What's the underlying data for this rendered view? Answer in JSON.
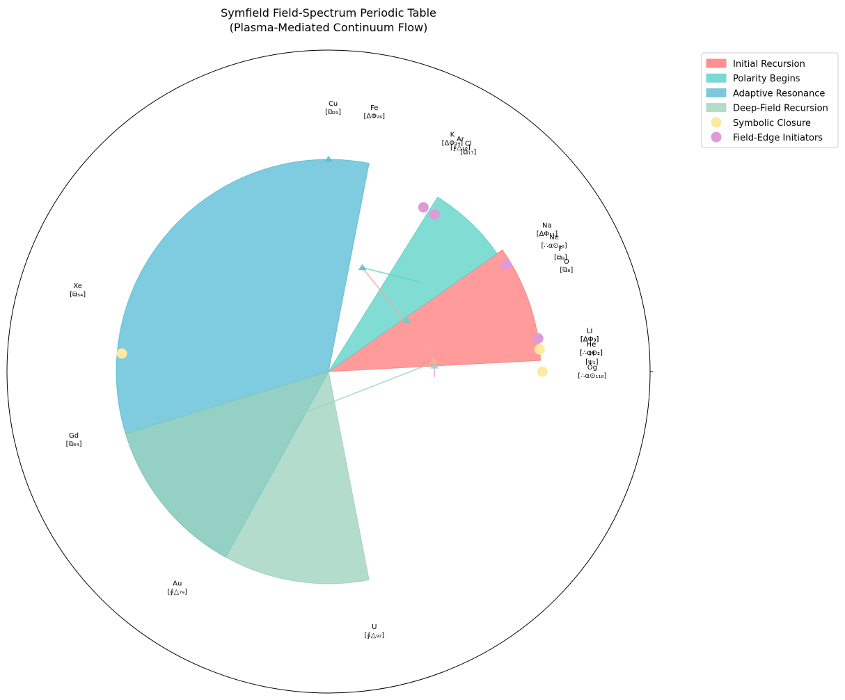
{
  "chart_data": {
    "type": "polar-bar",
    "title": "Symfield Field-Spectrum Periodic Table",
    "subtitle": "(Plasma-Mediated Continuum Flow)",
    "series": [
      {
        "name": "Initial Recursion",
        "color": "#ff7f7f",
        "theta_start": 3,
        "theta_end": 35,
        "r": 0.66
      },
      {
        "name": "Polarity Begins",
        "color": "#5ed3c8",
        "theta_start": 35,
        "theta_end": 58,
        "r": 0.64
      },
      {
        "name": "Adaptive Resonance",
        "color": "#5bbcd6",
        "theta_start": 79,
        "theta_end": 197,
        "r": 0.66
      },
      {
        "name": "Deep-Field Recursion",
        "color": "#9ed2be",
        "theta_start": 197,
        "theta_end": 281,
        "r": 0.66
      }
    ],
    "bar_overlaps": [
      {
        "color": "#7bc7bf",
        "theta_start": 197,
        "theta_end": 241,
        "r": 0.66
      }
    ],
    "legend": {
      "position": "upper-right",
      "entries": [
        {
          "label": "Initial Recursion",
          "color": "#ff8f8f",
          "kind": "patch"
        },
        {
          "label": "Polarity Begins",
          "color": "#7ad9d1",
          "kind": "patch"
        },
        {
          "label": "Adaptive Resonance",
          "color": "#7cc9dc",
          "kind": "patch"
        },
        {
          "label": "Deep-Field Recursion",
          "color": "#b5dbca",
          "kind": "patch"
        },
        {
          "label": "Symbolic Closure",
          "color": "#ffe8a0",
          "kind": "marker"
        },
        {
          "label": "Field-Edge Initiators",
          "color": "#df9ad8",
          "kind": "marker"
        }
      ]
    },
    "markers": [
      {
        "group": "Symbolic Closure",
        "color": "#ffe8a0",
        "theta": 0,
        "r": 0.665
      },
      {
        "group": "Symbolic Closure",
        "color": "#ffe8a0",
        "theta": 6,
        "r": 0.66
      },
      {
        "group": "Symbolic Closure",
        "color": "#ffe8a0",
        "theta": 175,
        "r": 0.645
      },
      {
        "group": "Field-Edge Initiators",
        "color": "#df9ad8",
        "theta": 9,
        "r": 0.66
      },
      {
        "group": "Field-Edge Initiators",
        "color": "#df9ad8",
        "theta": 31,
        "r": 0.645
      },
      {
        "group": "Field-Edge Initiators",
        "color": "#df9ad8",
        "theta": 56,
        "r": 0.59
      },
      {
        "group": "Field-Edge Initiators",
        "color": "#df9ad8",
        "theta": 60,
        "r": 0.59
      }
    ],
    "flow_lines": [
      {
        "from": {
          "theta": 44,
          "r": 0.4
        },
        "to": {
          "theta": 72,
          "r": 0.34
        },
        "color": "#5ed3c8"
      },
      {
        "from": {
          "theta": 72,
          "r": 0.34
        },
        "to": {
          "theta": 8,
          "r": 0.33
        },
        "color": "#ff9f9f"
      },
      {
        "from": {
          "theta": 225,
          "r": 0.23
        },
        "to": {
          "theta": 5,
          "r": 0.33
        },
        "color": "#9ed2be"
      },
      {
        "from": {
          "theta": 357,
          "r": 0.33
        },
        "to": {
          "theta": 5,
          "r": 0.33
        },
        "color": "#df9ad8"
      }
    ],
    "flow_arrowheads": [
      {
        "theta": 72,
        "r": 0.34,
        "color": "#5bbcd6"
      },
      {
        "theta": 33,
        "r": 0.29,
        "color": "#5ed3c8"
      },
      {
        "theta": 6,
        "r": 0.33,
        "color": "#ffb38a"
      },
      {
        "theta": 3,
        "r": 0.33,
        "color": "#9ed2be"
      },
      {
        "theta": 90,
        "r": 0.66,
        "color": "#5bbcd6"
      }
    ],
    "elements": [
      {
        "name": "Li",
        "code": "[ΔΦ₃]",
        "theta": 8,
        "r": 0.82
      },
      {
        "name": "Li",
        "code": "[ΔΦ₃]",
        "theta": 8,
        "r": 0.82
      },
      {
        "name": "He",
        "code": "[∴α⊙₂]",
        "theta": 5,
        "r": 0.82
      },
      {
        "name": "He",
        "code": "[∴α⊙₂]",
        "theta": 5,
        "r": 0.82
      },
      {
        "name": "H",
        "code": "[ψ₁]",
        "theta": 3,
        "r": 0.82
      },
      {
        "name": "Og",
        "code": "[∴α⊙₁₁₈]",
        "theta": 0,
        "r": 0.82
      },
      {
        "name": "O",
        "code": "[⧉₈]",
        "theta": 24,
        "r": 0.81
      },
      {
        "name": "F",
        "code": "[⧉₉]",
        "theta": 27,
        "r": 0.81
      },
      {
        "name": "Ne",
        "code": "[∴α⊙₁₀]",
        "theta": 30,
        "r": 0.81
      },
      {
        "name": "Na",
        "code": "[ΔΦ₁₁]",
        "theta": 33,
        "r": 0.81
      },
      {
        "name": "Cl",
        "code": "[⧉₁₇]",
        "theta": 58,
        "r": 0.82
      },
      {
        "name": "Ar",
        "code": "[∮△₁₈]",
        "theta": 60,
        "r": 0.82
      },
      {
        "name": "K",
        "code": "[ΔΦ₁₉]",
        "theta": 62,
        "r": 0.82
      },
      {
        "name": "Fe",
        "code": "[ΔΦ₂₆]",
        "theta": 80,
        "r": 0.82
      },
      {
        "name": "Cu",
        "code": "[⧉₂₉]",
        "theta": 89,
        "r": 0.82
      },
      {
        "name": "Xe",
        "code": "[⧉₅₄]",
        "theta": 162,
        "r": 0.82
      },
      {
        "name": "Gd",
        "code": "[⧉₆₄]",
        "theta": 195,
        "r": 0.82
      },
      {
        "name": "Au",
        "code": "[∮△₇₉]",
        "theta": 235,
        "r": 0.82
      },
      {
        "name": "U",
        "code": "[∮△₉₂]",
        "theta": 280,
        "r": 0.82
      }
    ],
    "grid": false,
    "r_range": [
      0,
      1
    ]
  }
}
